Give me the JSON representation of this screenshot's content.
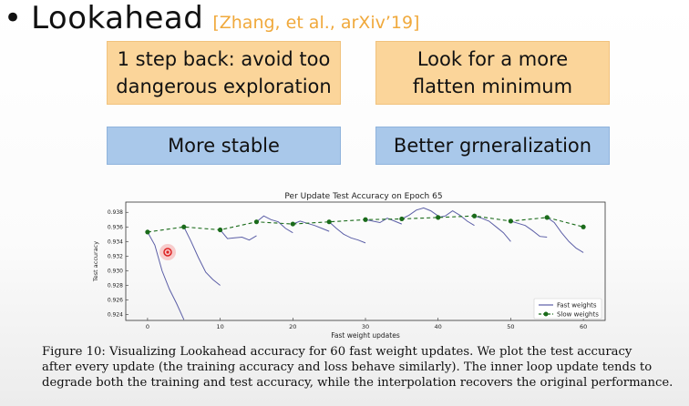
{
  "slide": {
    "bullet": "•",
    "title": "Lookahead",
    "citation": "[Zhang, et al., arXiv’19]"
  },
  "boxes": {
    "box1_line1": "1 step back: avoid too",
    "box1_line2": "dangerous exploration",
    "box2_line1": "Look for a more",
    "box2_line2": "flatten minimum",
    "box3": "More stable",
    "box4": "Better grneralization"
  },
  "colors": {
    "citation": "#f0a93c",
    "orange_box": "#fbd59a",
    "blue_box": "#a9c8ea",
    "fast_weights": "#5b5ea6",
    "slow_weights": "#1a6b1a"
  },
  "chart_data": {
    "type": "line",
    "title": "Per Update Test Accuracy on Epoch 65",
    "xlabel": "Fast weight updates",
    "ylabel": "Test accuracy",
    "xlim": [
      -3,
      63
    ],
    "ylim": [
      0.9232,
      0.9394
    ],
    "xticks": [
      0,
      10,
      20,
      30,
      40,
      50,
      60
    ],
    "yticks": [
      0.924,
      0.926,
      0.928,
      0.93,
      0.932,
      0.934,
      0.936,
      0.938
    ],
    "legend_position": "bottom-right",
    "series": [
      {
        "name": "Fast weights",
        "style": "solid",
        "segments": [
          [
            [
              0,
              0.9353
            ],
            [
              1,
              0.9335
            ],
            [
              2,
              0.93
            ],
            [
              3,
              0.9275
            ],
            [
              4,
              0.9255
            ],
            [
              5,
              0.9233
            ]
          ],
          [
            [
              5,
              0.936
            ],
            [
              6,
              0.934
            ],
            [
              7,
              0.9318
            ],
            [
              8,
              0.9298
            ],
            [
              9,
              0.9288
            ],
            [
              10,
              0.928
            ]
          ],
          [
            [
              10,
              0.9356
            ],
            [
              11,
              0.9344
            ],
            [
              12,
              0.9345
            ],
            [
              13,
              0.9346
            ],
            [
              14,
              0.9342
            ],
            [
              15,
              0.9348
            ]
          ],
          [
            [
              15,
              0.9367
            ],
            [
              16,
              0.9375
            ],
            [
              17,
              0.937
            ],
            [
              18,
              0.9367
            ],
            [
              19,
              0.9358
            ],
            [
              20,
              0.9352
            ]
          ],
          [
            [
              20,
              0.9364
            ],
            [
              21,
              0.9368
            ],
            [
              22,
              0.9365
            ],
            [
              23,
              0.9362
            ],
            [
              24,
              0.9358
            ],
            [
              25,
              0.9354
            ]
          ],
          [
            [
              25,
              0.9367
            ],
            [
              26,
              0.9358
            ],
            [
              27,
              0.935
            ],
            [
              28,
              0.9345
            ],
            [
              29,
              0.9342
            ],
            [
              30,
              0.9338
            ]
          ],
          [
            [
              30,
              0.937
            ],
            [
              31,
              0.9368
            ],
            [
              32,
              0.9366
            ],
            [
              33,
              0.9372
            ],
            [
              34,
              0.9368
            ],
            [
              35,
              0.9364
            ]
          ],
          [
            [
              35,
              0.9371
            ],
            [
              36,
              0.9376
            ],
            [
              37,
              0.9383
            ],
            [
              38,
              0.9386
            ],
            [
              39,
              0.9382
            ],
            [
              40,
              0.9375
            ]
          ],
          [
            [
              40,
              0.9373
            ],
            [
              41,
              0.9375
            ],
            [
              42,
              0.9382
            ],
            [
              43,
              0.9376
            ],
            [
              44,
              0.9368
            ],
            [
              45,
              0.9362
            ]
          ],
          [
            [
              45,
              0.9375
            ],
            [
              46,
              0.9372
            ],
            [
              47,
              0.9368
            ],
            [
              48,
              0.936
            ],
            [
              49,
              0.9352
            ],
            [
              50,
              0.934
            ]
          ],
          [
            [
              50,
              0.9368
            ],
            [
              51,
              0.9365
            ],
            [
              52,
              0.9362
            ],
            [
              53,
              0.9355
            ],
            [
              54,
              0.9347
            ],
            [
              55,
              0.9346
            ]
          ],
          [
            [
              55,
              0.9373
            ],
            [
              56,
              0.9366
            ],
            [
              57,
              0.9352
            ],
            [
              58,
              0.934
            ],
            [
              59,
              0.9331
            ],
            [
              60,
              0.9325
            ]
          ]
        ]
      },
      {
        "name": "Slow weights",
        "style": "dashed-markers",
        "x": [
          0,
          5,
          10,
          15,
          20,
          25,
          30,
          35,
          40,
          45,
          50,
          55,
          60
        ],
        "y": [
          0.9353,
          0.936,
          0.9356,
          0.9367,
          0.9364,
          0.9367,
          0.937,
          0.9371,
          0.9373,
          0.9375,
          0.9368,
          0.9373,
          0.936
        ]
      }
    ]
  },
  "caption": {
    "line1": "Figure 10: Visualizing Lookahead accuracy for 60 fast weight updates. We plot the test accuracy",
    "line2": "after every update (the training accuracy and loss behave similarly). The inner loop update tends to",
    "line3": "degrade both the training and test accuracy, while the interpolation recovers the original performance."
  }
}
